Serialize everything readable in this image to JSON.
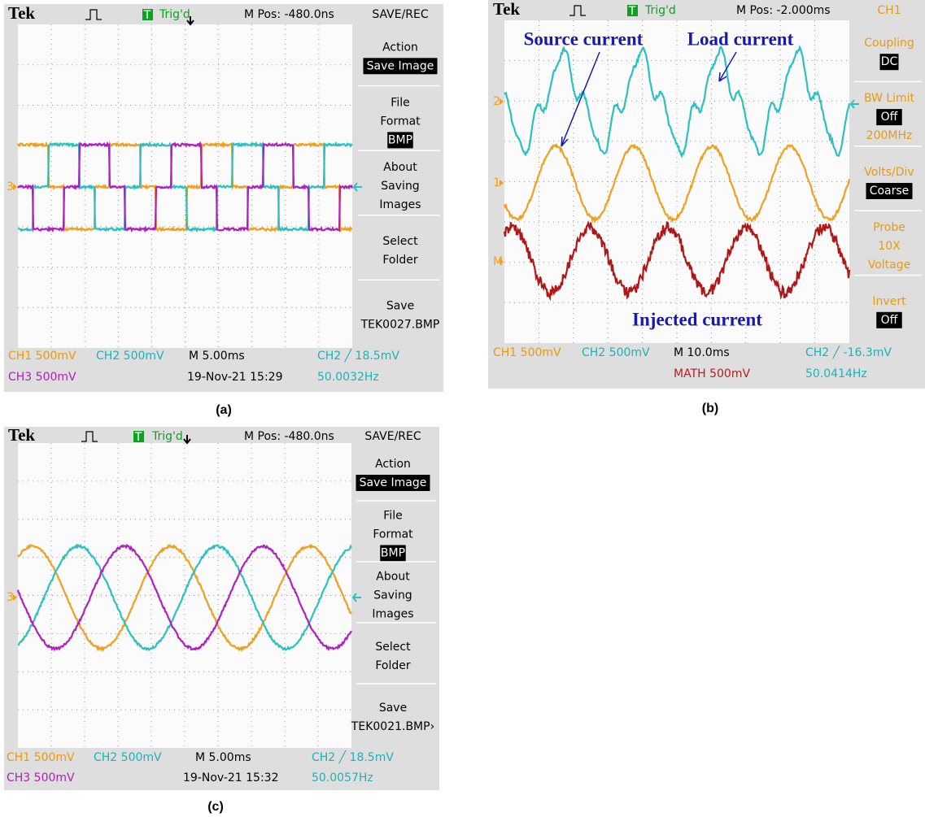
{
  "panels": [
    {
      "caption": "(a)",
      "header": {
        "brand": "Tek",
        "trig_icon": "T",
        "trig": "Trig'd",
        "mpos": "M Pos: -480.0ns",
        "menu_title": "SAVE/REC"
      },
      "menu_color": "#000000",
      "menu": [
        [
          {
            "text": "Action"
          },
          {
            "text": "Save Image",
            "boxed": true
          }
        ],
        [
          {
            "text": "File"
          },
          {
            "text": "Format"
          },
          {
            "text": "BMP",
            "boxed": true
          }
        ],
        [
          {
            "text": "About"
          },
          {
            "text": "Saving"
          },
          {
            "text": "Images"
          }
        ],
        [
          {
            "text": "Select"
          },
          {
            "text": "Folder"
          }
        ],
        [
          {
            "text": "Save"
          },
          {
            "text": "TEK0027.BMP"
          }
        ]
      ],
      "channel_markers": [
        "3"
      ],
      "footer": [
        {
          "text": "CH1  500mV",
          "color": "#e89a10"
        },
        {
          "text": "CH2  500mV",
          "color": "#20b0b8"
        },
        {
          "text": "M 5.00ms",
          "color": "#000000"
        },
        {
          "text": "CH2 ╱ 18.5mV",
          "color": "#20b0b8"
        },
        {
          "text": "CH3  500mV",
          "color": "#b020b8"
        },
        {
          "text": "19-Nov-21 15:29",
          "color": "#000000"
        },
        {
          "text": "50.0032Hz",
          "color": "#20b0b8"
        }
      ]
    },
    {
      "caption": "(b)",
      "header": {
        "brand": "Tek",
        "trig_icon": "T",
        "trig": "Trig'd",
        "mpos": "M Pos: -2.000ms",
        "menu_title": "CH1"
      },
      "menu_color": "#e89a10",
      "menu": [
        [
          {
            "text": "Coupling"
          },
          {
            "text": "DC",
            "boxed": true
          }
        ],
        [
          {
            "text": "BW Limit"
          },
          {
            "text": "Off",
            "boxed": true
          },
          {
            "text": "200MHz"
          }
        ],
        [
          {
            "text": "Volts/Div"
          },
          {
            "text": "Coarse",
            "boxed": true
          }
        ],
        [
          {
            "text": "Probe"
          },
          {
            "text": "10X"
          },
          {
            "text": "Voltage"
          }
        ],
        [
          {
            "text": "Invert"
          },
          {
            "text": "Off",
            "boxed": true
          }
        ]
      ],
      "channel_markers": [
        "2",
        "1",
        "M"
      ],
      "annotations": [
        "Source current",
        "Load current",
        "Injected current"
      ],
      "footer": [
        {
          "text": "CH1  500mV",
          "color": "#e89a10"
        },
        {
          "text": "CH2  500mV",
          "color": "#20b0b8"
        },
        {
          "text": "M 10.0ms",
          "color": "#000000"
        },
        {
          "text": "CH2 ╱ -16.3mV",
          "color": "#20b0b8"
        },
        {
          "text": "MATH 500mV",
          "color": "#b02020"
        },
        {
          "text": "50.0414Hz",
          "color": "#20b0b8"
        }
      ]
    },
    {
      "caption": "(c)",
      "header": {
        "brand": "Tek",
        "trig_icon": "T",
        "trig": "Trig'd",
        "mpos": "M Pos: -480.0ns",
        "menu_title": "SAVE/REC"
      },
      "menu_color": "#000000",
      "menu": [
        [
          {
            "text": "Action"
          },
          {
            "text": "Save Image",
            "boxed": true
          }
        ],
        [
          {
            "text": "File"
          },
          {
            "text": "Format"
          },
          {
            "text": "BMP",
            "boxed": true
          }
        ],
        [
          {
            "text": "About"
          },
          {
            "text": "Saving"
          },
          {
            "text": "Images"
          }
        ],
        [
          {
            "text": "Select"
          },
          {
            "text": "Folder"
          }
        ],
        [
          {
            "text": "Save"
          },
          {
            "text": "TEK0021.BMP›"
          }
        ]
      ],
      "channel_markers": [
        "3"
      ],
      "footer": [
        {
          "text": "CH1  500mV",
          "color": "#e89a10"
        },
        {
          "text": "CH2  500mV",
          "color": "#20b0b8"
        },
        {
          "text": "M 5.00ms",
          "color": "#000000"
        },
        {
          "text": "CH2 ╱ 18.5mV",
          "color": "#20b0b8"
        },
        {
          "text": "CH3  500mV",
          "color": "#b020b8"
        },
        {
          "text": "19-Nov-21 15:32",
          "color": "#000000"
        },
        {
          "text": "50.0057Hz",
          "color": "#20b0b8"
        }
      ]
    }
  ]
}
